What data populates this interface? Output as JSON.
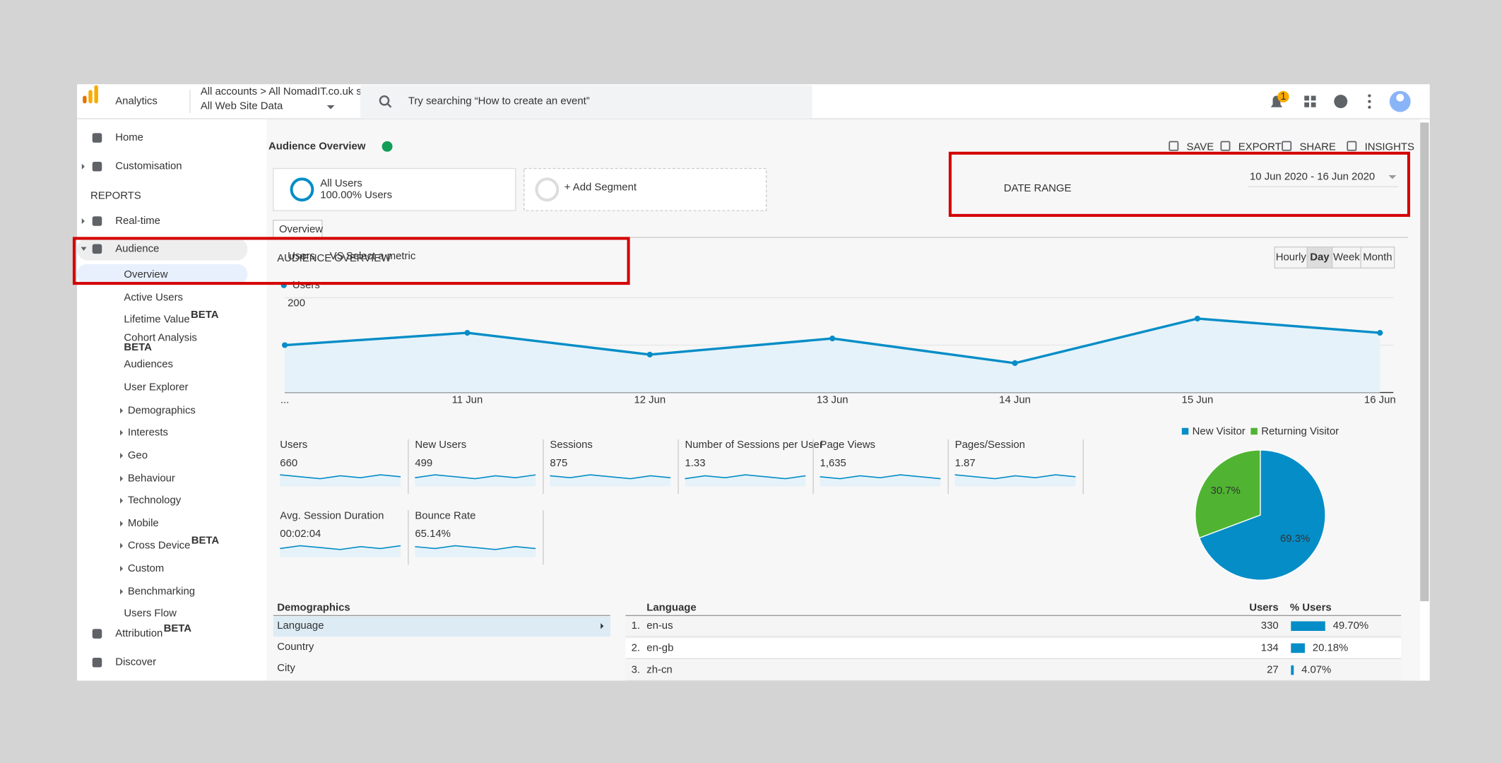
{
  "header": {
    "app_name": "Analytics",
    "breadcrumb": "All accounts > All NomadIT.co.uk sites",
    "property": "All Web Site Data",
    "search_placeholder": "Try searching “How to create an event”",
    "notification_count": "1"
  },
  "sidebar": {
    "reports_heading": "REPORTS",
    "items": [
      {
        "label": "Home"
      },
      {
        "label": "Customisation"
      },
      {
        "label": "Real-time"
      },
      {
        "label": "Audience"
      },
      {
        "label": "Overview"
      },
      {
        "label": "Active Users"
      },
      {
        "label": "Lifetime Value",
        "badge": "BETA"
      },
      {
        "label": "Cohort Analysis",
        "badge": "BETA"
      },
      {
        "label": "Audiences"
      },
      {
        "label": "User Explorer"
      },
      {
        "label": "Demographics"
      },
      {
        "label": "Interests"
      },
      {
        "label": "Geo"
      },
      {
        "label": "Behaviour"
      },
      {
        "label": "Technology"
      },
      {
        "label": "Mobile"
      },
      {
        "label": "Cross Device",
        "badge": "BETA"
      },
      {
        "label": "Custom"
      },
      {
        "label": "Benchmarking"
      },
      {
        "label": "Users Flow"
      },
      {
        "label": "Attribution",
        "badge": "BETA"
      },
      {
        "label": "Discover"
      }
    ]
  },
  "page": {
    "title": "Audience Overview",
    "actions": [
      "SAVE",
      "EXPORT",
      "SHARE",
      "INSIGHTS"
    ],
    "segment": {
      "name": "All Users",
      "detail": "100.00% Users"
    },
    "add_segment": "+ Add Segment",
    "date_range": "10 Jun 2020 - 16 Jun 2020",
    "tab": "Overview",
    "granularity": [
      "Hourly",
      "Day",
      "Week",
      "Month"
    ],
    "metric_selector": {
      "primary": "Users",
      "vs": "VS",
      "secondary": "Select a metric"
    }
  },
  "chart_data": [
    {
      "type": "line",
      "categories": [
        "...",
        "11 Jun",
        "12 Jun",
        "13 Jun",
        "14 Jun",
        "15 Jun",
        "16 Jun"
      ],
      "series": [
        {
          "name": "Users",
          "color": "#058dc7",
          "values": [
            100,
            126,
            80,
            114,
            62,
            156,
            126
          ]
        }
      ],
      "ylim": [
        0,
        200
      ],
      "yticks": [
        100,
        200
      ],
      "grid": true
    },
    {
      "type": "pie",
      "categories": [
        "New Visitor",
        "Returning Visitor"
      ],
      "values": [
        69.3,
        30.7
      ],
      "value_labels": [
        "69.3%",
        "30.7%"
      ],
      "colors": [
        "#058dc7",
        "#50b432"
      ]
    }
  ],
  "metrics": [
    {
      "label": "Users",
      "value": "660"
    },
    {
      "label": "New Users",
      "value": "499"
    },
    {
      "label": "Sessions",
      "value": "875"
    },
    {
      "label": "Number of Sessions per User",
      "value": "1.33"
    },
    {
      "label": "Page Views",
      "value": "1,635"
    },
    {
      "label": "Pages/Session",
      "value": "1.87"
    },
    {
      "label": "Avg. Session Duration",
      "value": "00:02:04"
    },
    {
      "label": "Bounce Rate",
      "value": "65.14%"
    }
  ],
  "demographics": {
    "heading": "Demographics",
    "links": [
      "Language",
      "Country",
      "City"
    ]
  },
  "language_table": {
    "columns": [
      "Language",
      "Users",
      "% Users"
    ],
    "rows": [
      {
        "rank": "1.",
        "language": "en-us",
        "users": 330
      },
      {
        "rank": "2.",
        "language": "en-gb",
        "users": 134
      },
      {
        "rank": "3.",
        "language": "zh-cn",
        "users": 27
      }
    ],
    "percent_values": [
      49.7,
      20.18,
      4.07
    ],
    "percent_labels": [
      "49.70%",
      "20.18%",
      "4.07%"
    ]
  },
  "annotations": {
    "date_range": "DATE RANGE",
    "audience_overview": "AUDIENCE OVERVIEW"
  }
}
